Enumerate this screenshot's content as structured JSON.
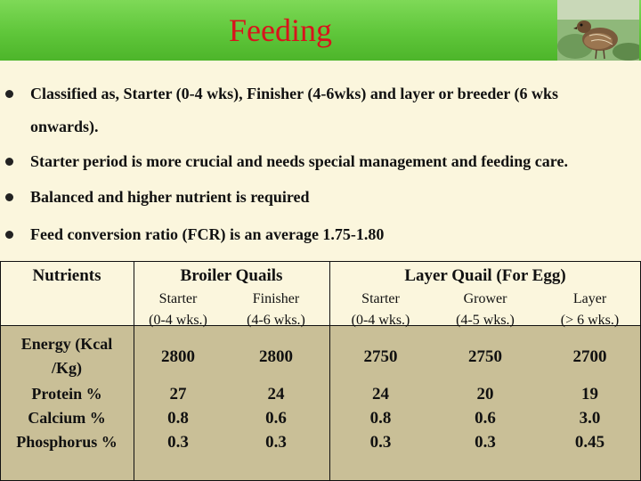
{
  "title": "Feeding",
  "bullets": [
    {
      "line1": "Classified as, Starter (0-4 wks), Finisher (4-6wks) and layer or breeder (6 wks",
      "line2": "onwards)."
    },
    {
      "line1": "Starter period is more crucial and needs special management and feeding care."
    },
    {
      "line1": "Balanced and higher nutrient is required"
    },
    {
      "line1": "Feed conversion ratio (FCR) is an average 1.75-1.80"
    }
  ],
  "table": {
    "nutrients_header": "Nutrients",
    "broiler_header": "Broiler Quails",
    "layer_header": "Layer Quail (For Egg)",
    "columns": [
      {
        "name": "Starter",
        "range": "(0-4 wks.)"
      },
      {
        "name": "Finisher",
        "range": "(4-6 wks.)"
      },
      {
        "name": "Starter",
        "range": "(0-4 wks.)"
      },
      {
        "name": "Grower",
        "range": "(4-5 wks.)"
      },
      {
        "name": "Layer",
        "range": "(> 6 wks.)"
      }
    ],
    "energy_label_1": "Energy (Kcal",
    "energy_label_2": "/Kg)",
    "energy": [
      "2800",
      "2800",
      "2750",
      "2750",
      "2700"
    ],
    "other_labels": [
      "Protein %",
      "Calcium %",
      "Phosphorus %"
    ],
    "other_rows": [
      [
        "27",
        "24",
        "24",
        "20",
        "19"
      ],
      [
        "0.8",
        "0.6",
        "0.8",
        "0.6",
        "3.0"
      ],
      [
        "0.3",
        "0.3",
        "0.3",
        "0.3",
        "0.45"
      ]
    ]
  }
}
